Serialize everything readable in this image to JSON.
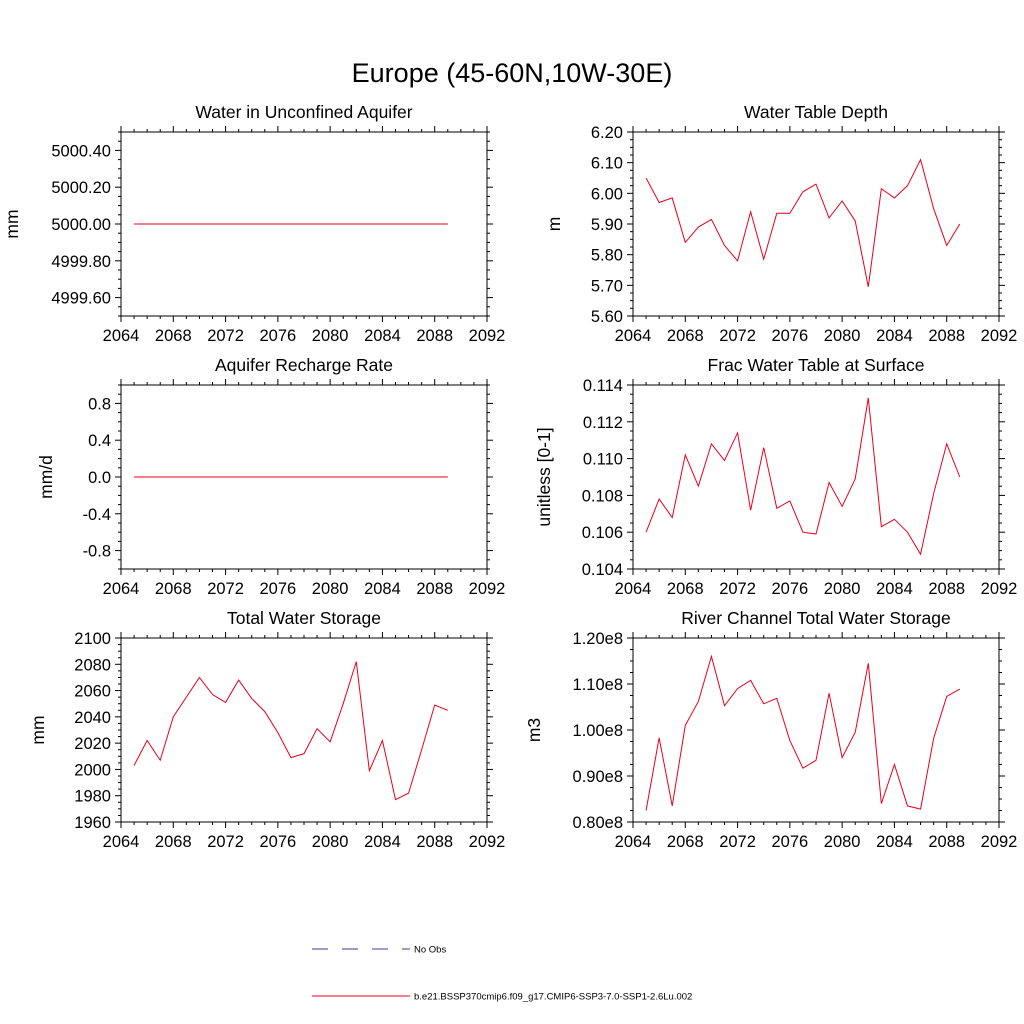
{
  "figure": {
    "title": "Europe (45-60N,10W-30E)"
  },
  "legend": [
    {
      "label": "No Obs",
      "color": "#3b3b9a",
      "style": "dashed"
    },
    {
      "label": "b.e21.BSSP370cmip6.f09_g17.CMIP6-SSP3-7.0-SSP1-2.6Lu.002",
      "color": "#e8001c",
      "style": "solid"
    }
  ],
  "chart_data": [
    {
      "type": "line",
      "title": "Water in Unconfined Aquifer",
      "ylabel": "mm",
      "xlim": [
        2064,
        2092
      ],
      "ylim": [
        4999.5,
        5000.5
      ],
      "xticks": [
        "2064",
        "2068",
        "2072",
        "2076",
        "2080",
        "2084",
        "2088",
        "2092"
      ],
      "yticks": [
        {
          "v": 4999.6,
          "label": "4999.60"
        },
        {
          "v": 4999.8,
          "label": "4999.80"
        },
        {
          "v": 5000.0,
          "label": "5000.00"
        },
        {
          "v": 5000.2,
          "label": "5000.20"
        },
        {
          "v": 5000.4,
          "label": "5000.40"
        }
      ],
      "x": [
        2065,
        2066,
        2067,
        2068,
        2069,
        2070,
        2071,
        2072,
        2073,
        2074,
        2075,
        2076,
        2077,
        2078,
        2079,
        2080,
        2081,
        2082,
        2083,
        2084,
        2085,
        2086,
        2087,
        2088,
        2089
      ],
      "y": [
        5000,
        5000,
        5000,
        5000,
        5000,
        5000,
        5000,
        5000,
        5000,
        5000,
        5000,
        5000,
        5000,
        5000,
        5000,
        5000,
        5000,
        5000,
        5000,
        5000,
        5000,
        5000,
        5000,
        5000,
        5000
      ]
    },
    {
      "type": "line",
      "title": "Water Table Depth",
      "ylabel": "m",
      "xlim": [
        2064,
        2092
      ],
      "ylim": [
        5.6,
        6.2
      ],
      "xticks": [
        "2064",
        "2068",
        "2072",
        "2076",
        "2080",
        "2084",
        "2088",
        "2092"
      ],
      "yticks": [
        {
          "v": 5.6,
          "label": "5.60"
        },
        {
          "v": 5.7,
          "label": "5.70"
        },
        {
          "v": 5.8,
          "label": "5.80"
        },
        {
          "v": 5.9,
          "label": "5.90"
        },
        {
          "v": 6.0,
          "label": "6.00"
        },
        {
          "v": 6.1,
          "label": "6.10"
        },
        {
          "v": 6.2,
          "label": "6.20"
        }
      ],
      "x": [
        2065,
        2066,
        2067,
        2068,
        2069,
        2070,
        2071,
        2072,
        2073,
        2074,
        2075,
        2076,
        2077,
        2078,
        2079,
        2080,
        2081,
        2082,
        2083,
        2084,
        2085,
        2086,
        2087,
        2088,
        2089
      ],
      "y": [
        6.05,
        5.97,
        5.985,
        5.84,
        5.89,
        5.915,
        5.83,
        5.78,
        5.94,
        5.785,
        5.935,
        5.935,
        6.005,
        6.03,
        5.92,
        5.975,
        5.91,
        5.695,
        6.015,
        5.985,
        6.025,
        6.11,
        5.95,
        5.83,
        5.9
      ]
    },
    {
      "type": "line",
      "title": "Aquifer Recharge Rate",
      "ylabel": "mm/d",
      "xlim": [
        2064,
        2092
      ],
      "ylim": [
        -1.0,
        1.0
      ],
      "xticks": [
        "2064",
        "2068",
        "2072",
        "2076",
        "2080",
        "2084",
        "2088",
        "2092"
      ],
      "yticks": [
        {
          "v": -0.8,
          "label": "-0.8"
        },
        {
          "v": -0.4,
          "label": "-0.4"
        },
        {
          "v": 0.0,
          "label": "0.0"
        },
        {
          "v": 0.4,
          "label": "0.4"
        },
        {
          "v": 0.8,
          "label": "0.8"
        }
      ],
      "x": [
        2065,
        2066,
        2067,
        2068,
        2069,
        2070,
        2071,
        2072,
        2073,
        2074,
        2075,
        2076,
        2077,
        2078,
        2079,
        2080,
        2081,
        2082,
        2083,
        2084,
        2085,
        2086,
        2087,
        2088,
        2089
      ],
      "y": [
        0,
        0,
        0,
        0,
        0,
        0,
        0,
        0,
        0,
        0,
        0,
        0,
        0,
        0,
        0,
        0,
        0,
        0,
        0,
        0,
        0,
        0,
        0,
        0,
        0
      ]
    },
    {
      "type": "line",
      "title": "Frac Water Table at Surface",
      "ylabel": "unitless [0-1]",
      "xlim": [
        2064,
        2092
      ],
      "ylim": [
        0.104,
        0.114
      ],
      "xticks": [
        "2064",
        "2068",
        "2072",
        "2076",
        "2080",
        "2084",
        "2088",
        "2092"
      ],
      "yticks": [
        {
          "v": 0.104,
          "label": "0.104"
        },
        {
          "v": 0.106,
          "label": "0.106"
        },
        {
          "v": 0.108,
          "label": "0.108"
        },
        {
          "v": 0.11,
          "label": "0.110"
        },
        {
          "v": 0.112,
          "label": "0.112"
        },
        {
          "v": 0.114,
          "label": "0.114"
        }
      ],
      "x": [
        2065,
        2066,
        2067,
        2068,
        2069,
        2070,
        2071,
        2072,
        2073,
        2074,
        2075,
        2076,
        2077,
        2078,
        2079,
        2080,
        2081,
        2082,
        2083,
        2084,
        2085,
        2086,
        2087,
        2088,
        2089
      ],
      "y": [
        0.106,
        0.1078,
        0.1068,
        0.1102,
        0.1085,
        0.1108,
        0.1099,
        0.1114,
        0.1072,
        0.1106,
        0.1073,
        0.1077,
        0.106,
        0.1059,
        0.1087,
        0.1074,
        0.1089,
        0.1133,
        0.1063,
        0.1067,
        0.106,
        0.1048,
        0.1081,
        0.1108,
        0.109
      ]
    },
    {
      "type": "line",
      "title": "Total Water Storage",
      "ylabel": "mm",
      "xlim": [
        2064,
        2092
      ],
      "ylim": [
        1960,
        2100
      ],
      "xticks": [
        "2064",
        "2068",
        "2072",
        "2076",
        "2080",
        "2084",
        "2088",
        "2092"
      ],
      "yticks": [
        {
          "v": 1960,
          "label": "1960"
        },
        {
          "v": 1980,
          "label": "1980"
        },
        {
          "v": 2000,
          "label": "2000"
        },
        {
          "v": 2020,
          "label": "2020"
        },
        {
          "v": 2040,
          "label": "2040"
        },
        {
          "v": 2060,
          "label": "2060"
        },
        {
          "v": 2080,
          "label": "2080"
        },
        {
          "v": 2100,
          "label": "2100"
        }
      ],
      "x": [
        2065,
        2066,
        2067,
        2068,
        2069,
        2070,
        2071,
        2072,
        2073,
        2074,
        2075,
        2076,
        2077,
        2078,
        2079,
        2080,
        2081,
        2082,
        2083,
        2084,
        2085,
        2086,
        2087,
        2088,
        2089
      ],
      "y": [
        2003,
        2022,
        2007,
        2040,
        2055,
        2070,
        2057,
        2051,
        2068,
        2054,
        2044,
        2028,
        2009,
        2012,
        2031,
        2021,
        2050,
        2082,
        1999,
        2022,
        1977,
        1982,
        2015,
        2049,
        2045
      ]
    },
    {
      "type": "line",
      "title": "River Channel Total Water Storage",
      "ylabel": "m3",
      "xlim": [
        2064,
        2092
      ],
      "ylim": [
        80000000.0,
        120000000.0
      ],
      "xticks": [
        "2064",
        "2068",
        "2072",
        "2076",
        "2080",
        "2084",
        "2088",
        "2092"
      ],
      "yticks": [
        {
          "v": 80000000,
          "label": "0.80e8"
        },
        {
          "v": 90000000,
          "label": "0.90e8"
        },
        {
          "v": 100000000,
          "label": "1.00e8"
        },
        {
          "v": 110000000,
          "label": "1.10e8"
        },
        {
          "v": 120000000,
          "label": "1.20e8"
        }
      ],
      "x": [
        2065,
        2066,
        2067,
        2068,
        2069,
        2070,
        2071,
        2072,
        2073,
        2074,
        2075,
        2076,
        2077,
        2078,
        2079,
        2080,
        2081,
        2082,
        2083,
        2084,
        2085,
        2086,
        2087,
        2088,
        2089
      ],
      "y": [
        82500000,
        98300000,
        83500000,
        101000000,
        106200000,
        116000000,
        105300000,
        109000000,
        110800000,
        105700000,
        106900000,
        97700000,
        91700000,
        93400000,
        108000000,
        94000000,
        99500000,
        114500000,
        84000000,
        92500000,
        83500000,
        82800000,
        98200000,
        107300000,
        108900000
      ]
    }
  ]
}
